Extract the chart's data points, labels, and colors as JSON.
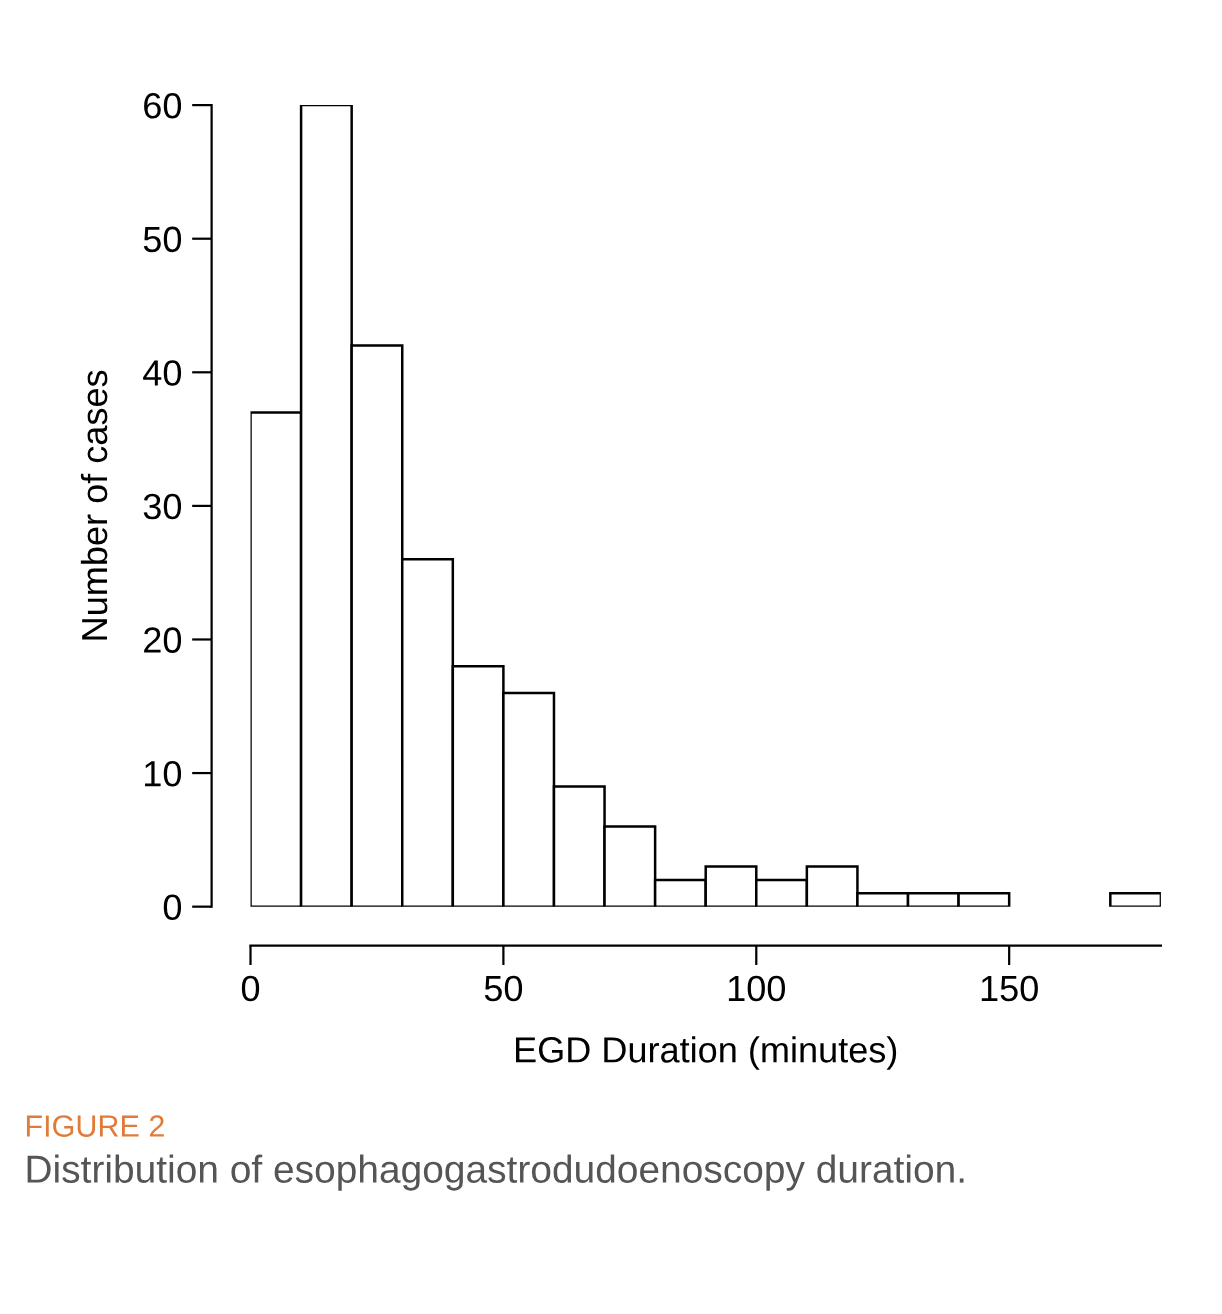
{
  "chart_data": {
    "type": "histogram",
    "xlabel": "EGD Duration (minutes)",
    "ylabel": "Number of cases",
    "bins": [
      0,
      10,
      20,
      30,
      40,
      50,
      60,
      70,
      80,
      90,
      100,
      110,
      120,
      130,
      140,
      150,
      160,
      170,
      180
    ],
    "values": [
      37,
      60,
      42,
      26,
      18,
      16,
      9,
      6,
      2,
      3,
      2,
      3,
      1,
      1,
      1,
      0,
      0,
      1
    ],
    "color": "#ffffff",
    "xlim": [
      0,
      180
    ],
    "xticks": [
      0,
      50,
      100,
      150
    ],
    "ylim": [
      0,
      60
    ],
    "yticks": [
      0,
      10,
      20,
      30,
      40,
      50,
      60
    ],
    "grid": false,
    "annotations": [
      "FIGURE 2",
      "Distribution of esophagogastrodudoenoscopy duration."
    ]
  }
}
